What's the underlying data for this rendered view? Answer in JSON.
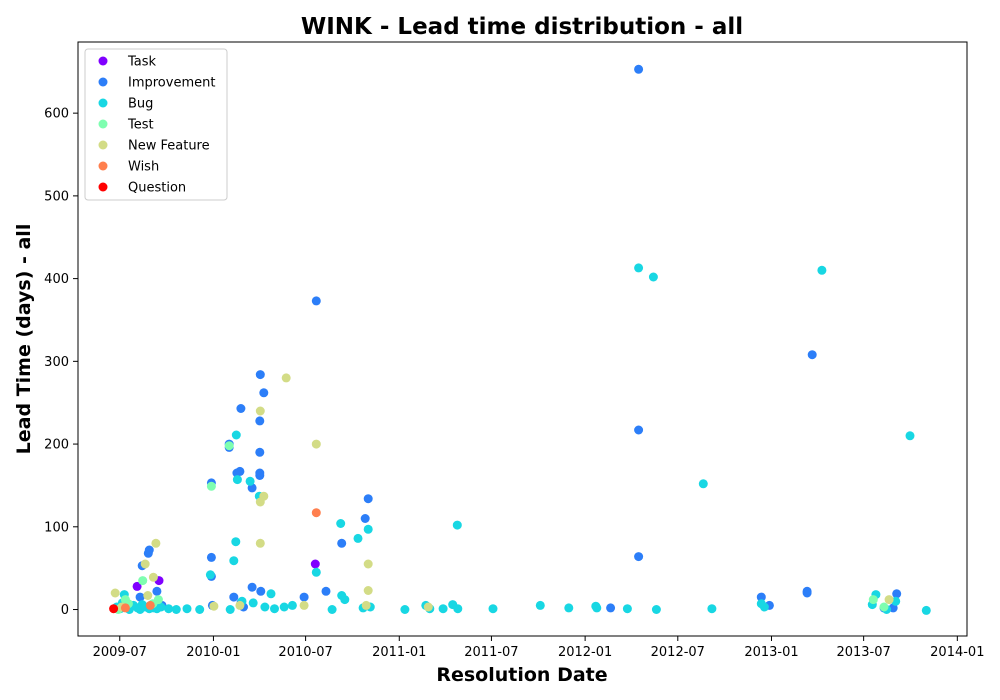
{
  "chart_data": {
    "type": "scatter",
    "title": "WINK - Lead time distribution - all",
    "xlabel": "Resolution Date",
    "ylabel": "Lead Time (days) - all",
    "x_axis_type": "date",
    "xlim": [
      "2009-04-10",
      "2014-01-20"
    ],
    "ylim": [
      -32,
      686
    ],
    "x_ticks": [
      "2009-07-01",
      "2010-01-01",
      "2010-07-01",
      "2011-01-01",
      "2011-07-01",
      "2012-01-01",
      "2012-07-01",
      "2013-01-01",
      "2013-07-01",
      "2014-01-01"
    ],
    "x_tick_labels": [
      "2009-07",
      "2010-01",
      "2010-07",
      "2011-01",
      "2011-07",
      "2012-01",
      "2012-07",
      "2013-01",
      "2013-07",
      "2014-01"
    ],
    "y_ticks": [
      0,
      100,
      200,
      300,
      400,
      500,
      600
    ],
    "legend_position": "upper-left",
    "grid": false,
    "series": [
      {
        "name": "Task",
        "color": "#8000ff",
        "points": [
          [
            "2009-08-04",
            28
          ],
          [
            "2009-09-16",
            35
          ],
          [
            "2010-07-20",
            55
          ]
        ]
      },
      {
        "name": "Improvement",
        "color": "#2c7ef8",
        "points": [
          [
            "2009-07-01",
            2
          ],
          [
            "2009-08-14",
            53
          ],
          [
            "2009-08-26",
            68
          ],
          [
            "2009-08-28",
            72
          ],
          [
            "2009-08-10",
            15
          ],
          [
            "2009-09-12",
            22
          ],
          [
            "2009-09-22",
            5
          ],
          [
            "2009-12-28",
            153
          ],
          [
            "2009-12-28",
            63
          ],
          [
            "2009-12-28",
            40
          ],
          [
            "2009-12-30",
            5
          ],
          [
            "2010-02-01",
            196
          ],
          [
            "2010-02-01",
            200
          ],
          [
            "2010-02-10",
            15
          ],
          [
            "2010-02-16",
            165
          ],
          [
            "2010-02-22",
            167
          ],
          [
            "2010-02-24",
            243
          ],
          [
            "2010-02-24",
            8
          ],
          [
            "2010-03-01",
            3
          ],
          [
            "2010-03-18",
            147
          ],
          [
            "2010-03-18",
            27
          ],
          [
            "2010-04-02",
            162
          ],
          [
            "2010-04-02",
            165
          ],
          [
            "2010-04-02",
            190
          ],
          [
            "2010-04-02",
            228
          ],
          [
            "2010-04-03",
            284
          ],
          [
            "2010-04-04",
            22
          ],
          [
            "2010-04-10",
            262
          ],
          [
            "2010-07-22",
            373
          ],
          [
            "2010-08-10",
            22
          ],
          [
            "2010-09-10",
            80
          ],
          [
            "2010-10-26",
            110
          ],
          [
            "2010-11-01",
            134
          ],
          [
            "2010-06-28",
            15
          ],
          [
            "2012-04-15",
            653
          ],
          [
            "2012-04-15",
            217
          ],
          [
            "2012-04-15",
            64
          ],
          [
            "2012-02-20",
            2
          ],
          [
            "2012-12-12",
            15
          ],
          [
            "2012-12-28",
            5
          ],
          [
            "2013-03-12",
            22
          ],
          [
            "2013-03-12",
            20
          ],
          [
            "2013-03-22",
            308
          ],
          [
            "2013-08-10",
            2
          ],
          [
            "2013-09-04",
            19
          ],
          [
            "2013-08-28",
            2
          ]
        ]
      },
      {
        "name": "Bug",
        "color": "#18d7e3",
        "points": [
          [
            "2009-06-25",
            3
          ],
          [
            "2009-07-02",
            1
          ],
          [
            "2009-07-06",
            8
          ],
          [
            "2009-07-10",
            18
          ],
          [
            "2009-07-14",
            3
          ],
          [
            "2009-07-20",
            0
          ],
          [
            "2009-07-28",
            5
          ],
          [
            "2009-08-05",
            2
          ],
          [
            "2009-08-10",
            0
          ],
          [
            "2009-08-14",
            6
          ],
          [
            "2009-08-20",
            3
          ],
          [
            "2009-08-28",
            1
          ],
          [
            "2009-09-05",
            2
          ],
          [
            "2009-09-12",
            1
          ],
          [
            "2009-09-20",
            3
          ],
          [
            "2009-10-05",
            1
          ],
          [
            "2009-10-20",
            0
          ],
          [
            "2009-11-10",
            1
          ],
          [
            "2009-12-05",
            0
          ],
          [
            "2009-12-26",
            42
          ],
          [
            "2010-02-03",
            0
          ],
          [
            "2010-02-10",
            59
          ],
          [
            "2010-02-14",
            82
          ],
          [
            "2010-02-15",
            211
          ],
          [
            "2010-02-17",
            157
          ],
          [
            "2010-02-26",
            10
          ],
          [
            "2010-03-14",
            155
          ],
          [
            "2010-03-20",
            8
          ],
          [
            "2010-04-01",
            137
          ],
          [
            "2010-04-12",
            3
          ],
          [
            "2010-04-24",
            19
          ],
          [
            "2010-05-01",
            1
          ],
          [
            "2010-05-20",
            3
          ],
          [
            "2010-06-05",
            5
          ],
          [
            "2010-07-22",
            45
          ],
          [
            "2010-08-22",
            0
          ],
          [
            "2010-09-08",
            104
          ],
          [
            "2010-09-16",
            12
          ],
          [
            "2010-09-10",
            17
          ],
          [
            "2010-10-12",
            86
          ],
          [
            "2010-10-22",
            2
          ],
          [
            "2010-11-01",
            97
          ],
          [
            "2010-11-05",
            3
          ],
          [
            "2011-01-12",
            0
          ],
          [
            "2011-02-22",
            5
          ],
          [
            "2011-03-02",
            1
          ],
          [
            "2011-03-28",
            1
          ],
          [
            "2011-04-16",
            6
          ],
          [
            "2011-04-25",
            102
          ],
          [
            "2011-04-26",
            1
          ],
          [
            "2011-07-04",
            1
          ],
          [
            "2011-10-05",
            5
          ],
          [
            "2011-11-30",
            2
          ],
          [
            "2012-01-22",
            4
          ],
          [
            "2012-01-24",
            2
          ],
          [
            "2012-03-24",
            1
          ],
          [
            "2012-04-15",
            413
          ],
          [
            "2012-05-14",
            402
          ],
          [
            "2012-05-20",
            0
          ],
          [
            "2012-08-20",
            152
          ],
          [
            "2012-09-06",
            1
          ],
          [
            "2012-12-18",
            3
          ],
          [
            "2012-12-12",
            7
          ],
          [
            "2013-04-10",
            410
          ],
          [
            "2013-07-18",
            6
          ],
          [
            "2013-07-25",
            18
          ],
          [
            "2013-08-15",
            0
          ],
          [
            "2013-09-02",
            10
          ],
          [
            "2013-09-30",
            210
          ],
          [
            "2013-11-01",
            -1
          ]
        ]
      },
      {
        "name": "Test",
        "color": "#7efeb0",
        "points": [
          [
            "2009-06-28",
            0
          ],
          [
            "2009-07-12",
            12
          ],
          [
            "2009-07-18",
            7
          ],
          [
            "2009-08-15",
            35
          ],
          [
            "2009-09-04",
            7
          ],
          [
            "2009-09-15",
            12
          ],
          [
            "2009-12-28",
            149
          ],
          [
            "2010-02-01",
            198
          ],
          [
            "2013-07-20",
            12
          ],
          [
            "2013-08-10",
            3
          ]
        ]
      },
      {
        "name": "New Feature",
        "color": "#d3dc86",
        "points": [
          [
            "2009-06-22",
            20
          ],
          [
            "2009-07-05",
            3
          ],
          [
            "2009-08-20",
            55
          ],
          [
            "2009-08-25",
            17
          ],
          [
            "2009-09-05",
            39
          ],
          [
            "2009-09-10",
            80
          ],
          [
            "2010-01-02",
            4
          ],
          [
            "2010-02-22",
            5
          ],
          [
            "2010-04-03",
            80
          ],
          [
            "2010-04-03",
            130
          ],
          [
            "2010-04-03",
            240
          ],
          [
            "2010-04-10",
            137
          ],
          [
            "2010-05-24",
            280
          ],
          [
            "2010-06-28",
            5
          ],
          [
            "2010-07-22",
            200
          ],
          [
            "2010-11-01",
            55
          ],
          [
            "2010-11-01",
            23
          ],
          [
            "2010-10-28",
            5
          ],
          [
            "2011-02-27",
            3
          ],
          [
            "2013-08-20",
            12
          ]
        ]
      },
      {
        "name": "Wish",
        "color": "#ff7f4e",
        "points": [
          [
            "2009-07-12",
            2
          ],
          [
            "2009-08-30",
            5
          ],
          [
            "2010-07-22",
            117
          ]
        ]
      },
      {
        "name": "Question",
        "color": "#ff0000",
        "points": [
          [
            "2009-06-19",
            1
          ]
        ]
      }
    ]
  }
}
